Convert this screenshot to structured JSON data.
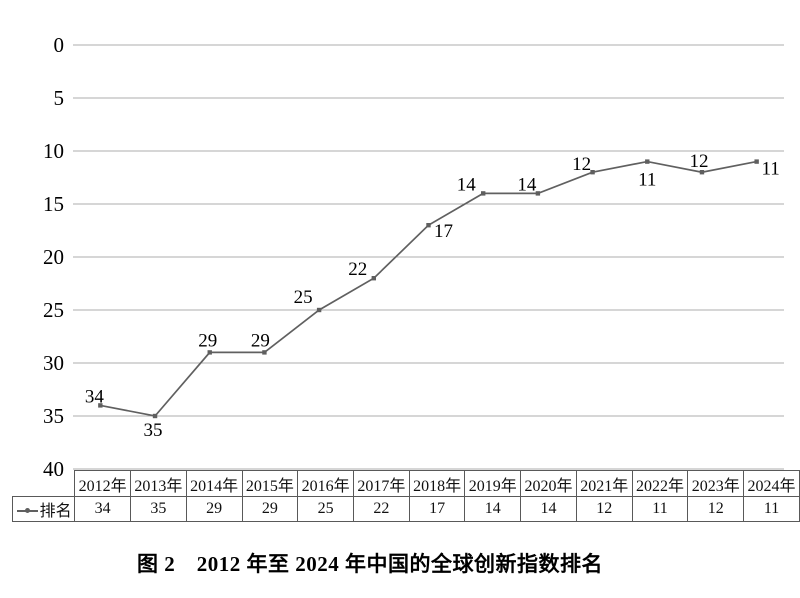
{
  "chart_data": {
    "type": "line",
    "title": "",
    "categories": [
      "2012年",
      "2013年",
      "2014年",
      "2015年",
      "2016年",
      "2017年",
      "2018年",
      "2019年",
      "2020年",
      "2021年",
      "2022年",
      "2023年",
      "2024年"
    ],
    "series": [
      {
        "name": "排名",
        "values": [
          34,
          35,
          29,
          29,
          25,
          22,
          17,
          14,
          14,
          12,
          11,
          12,
          11
        ]
      }
    ],
    "xlabel": "",
    "ylabel": "",
    "y_axis": {
      "ticks": [
        0,
        5,
        10,
        15,
        20,
        25,
        30,
        35,
        40
      ],
      "min": 0,
      "max": 40,
      "inverted": true
    },
    "grid": true,
    "data_labels": true,
    "legend_position": "table-row-header"
  },
  "table": {
    "legend_label": "排名",
    "legend_marker": "line-dot-marker-icon"
  },
  "caption": "图 2　2012 年至 2024 年中国的全球创新指数排名",
  "colors": {
    "line": "#606060",
    "marker": "#5f5f5f",
    "gridline": "#aeaeae",
    "table_border": "#595959",
    "text": "#000000"
  }
}
